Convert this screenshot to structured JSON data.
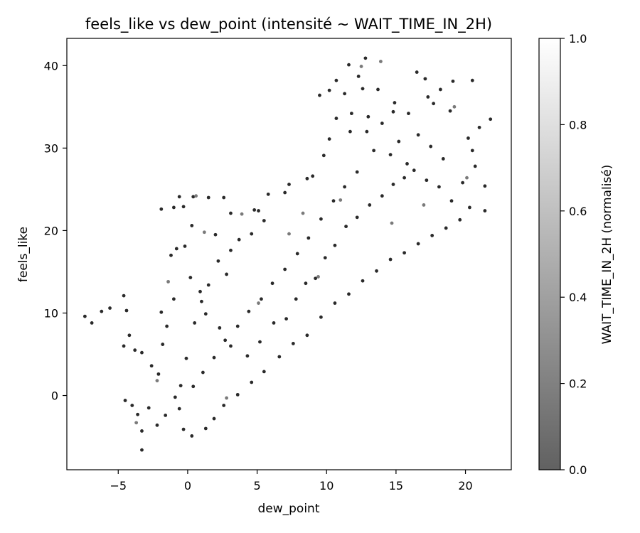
{
  "chart_data": {
    "type": "scatter",
    "title": "feels_like vs dew_point (intensité ~ WAIT_TIME_IN_2H)",
    "xlabel": "dew_point",
    "ylabel": "feels_like",
    "xlim": [
      -8.7,
      23.3
    ],
    "ylim": [
      -9.0,
      43.3
    ],
    "x_ticks": [
      -5,
      0,
      5,
      10,
      15,
      20
    ],
    "y_ticks": [
      0,
      10,
      20,
      30,
      40
    ],
    "grid": false,
    "colormap": "gray",
    "colorbar": {
      "label": "WAIT_TIME_IN_2H (normalisé)",
      "range": [
        0.0,
        1.0
      ],
      "ticks": [
        "0.0",
        "0.2",
        "0.4",
        "0.6",
        "0.8",
        "1.0"
      ],
      "color_low": "#616161",
      "color_high": "#ffffff"
    },
    "point_color_typical": "#2a2a2a",
    "series": [
      {
        "points": [
          [
            -7.4,
            9.6
          ],
          [
            -6.9,
            8.8
          ],
          [
            -6.2,
            10.2
          ],
          [
            -5.6,
            10.6
          ],
          [
            -4.6,
            12.1
          ],
          [
            -4.4,
            10.3
          ],
          [
            -4.2,
            7.3
          ],
          [
            -3.8,
            5.5
          ],
          [
            -3.3,
            5.2
          ],
          [
            -4.6,
            6.0
          ],
          [
            -4.5,
            -0.6
          ],
          [
            -4.0,
            -1.2
          ],
          [
            -3.6,
            -2.3
          ],
          [
            -3.3,
            -4.3
          ],
          [
            -3.3,
            -6.6
          ],
          [
            -2.8,
            -1.5
          ],
          [
            -2.6,
            3.6
          ],
          [
            -2.1,
            2.6
          ],
          [
            -1.8,
            6.2
          ],
          [
            -1.5,
            8.4
          ],
          [
            -1.9,
            10.1
          ],
          [
            -1.0,
            11.7
          ],
          [
            -1.2,
            17.0
          ],
          [
            -0.8,
            17.8
          ],
          [
            -1.9,
            22.6
          ],
          [
            -1.0,
            22.8
          ],
          [
            -0.3,
            22.9
          ],
          [
            -0.6,
            24.1
          ],
          [
            0.4,
            24.1
          ],
          [
            1.5,
            24.0
          ],
          [
            2.6,
            24.0
          ],
          [
            3.1,
            22.1
          ],
          [
            4.8,
            22.5
          ],
          [
            2.0,
            19.5
          ],
          [
            0.3,
            20.6
          ],
          [
            -0.2,
            18.1
          ],
          [
            0.2,
            14.3
          ],
          [
            1.0,
            11.4
          ],
          [
            0.5,
            8.8
          ],
          [
            -0.1,
            4.5
          ],
          [
            -0.5,
            1.2
          ],
          [
            -0.6,
            -1.6
          ],
          [
            -0.3,
            -4.1
          ],
          [
            0.3,
            -4.9
          ],
          [
            1.3,
            -4.0
          ],
          [
            1.9,
            -2.8
          ],
          [
            2.6,
            -1.2
          ],
          [
            3.6,
            0.1
          ],
          [
            4.6,
            1.6
          ],
          [
            5.5,
            2.9
          ],
          [
            6.6,
            4.7
          ],
          [
            7.6,
            6.3
          ],
          [
            8.6,
            7.3
          ],
          [
            9.6,
            9.5
          ],
          [
            10.6,
            11.2
          ],
          [
            11.6,
            12.3
          ],
          [
            12.6,
            13.9
          ],
          [
            13.6,
            15.1
          ],
          [
            14.6,
            16.5
          ],
          [
            15.6,
            17.3
          ],
          [
            16.6,
            18.4
          ],
          [
            17.6,
            19.4
          ],
          [
            18.6,
            20.3
          ],
          [
            19.6,
            21.3
          ],
          [
            20.3,
            22.8
          ],
          [
            21.4,
            25.4
          ],
          [
            21.4,
            22.4
          ],
          [
            20.7,
            27.8
          ],
          [
            20.5,
            29.7
          ],
          [
            20.2,
            31.2
          ],
          [
            21.0,
            32.5
          ],
          [
            21.8,
            33.5
          ],
          [
            20.5,
            38.2
          ],
          [
            19.1,
            38.1
          ],
          [
            18.9,
            34.5
          ],
          [
            18.2,
            37.1
          ],
          [
            17.7,
            35.4
          ],
          [
            17.3,
            36.2
          ],
          [
            16.5,
            39.2
          ],
          [
            17.1,
            38.4
          ],
          [
            15.9,
            34.2
          ],
          [
            14.8,
            34.4
          ],
          [
            14.0,
            33.0
          ],
          [
            13.7,
            37.1
          ],
          [
            14.9,
            35.5
          ],
          [
            15.2,
            30.8
          ],
          [
            13.0,
            33.8
          ],
          [
            12.6,
            37.2
          ],
          [
            12.9,
            32.0
          ],
          [
            12.3,
            38.7
          ],
          [
            12.8,
            40.9
          ],
          [
            11.6,
            40.1
          ],
          [
            10.7,
            38.2
          ],
          [
            11.3,
            36.6
          ],
          [
            9.5,
            36.4
          ],
          [
            10.2,
            37.0
          ],
          [
            11.8,
            34.2
          ],
          [
            10.7,
            33.6
          ],
          [
            11.7,
            32.0
          ],
          [
            10.2,
            31.1
          ],
          [
            9.8,
            29.1
          ],
          [
            9.0,
            26.6
          ],
          [
            8.6,
            26.3
          ],
          [
            7.3,
            25.6
          ],
          [
            7.0,
            24.6
          ],
          [
            5.8,
            24.4
          ],
          [
            5.5,
            21.2
          ],
          [
            5.1,
            22.4
          ],
          [
            4.6,
            19.6
          ],
          [
            3.7,
            18.9
          ],
          [
            3.1,
            17.6
          ],
          [
            2.2,
            16.3
          ],
          [
            2.8,
            14.7
          ],
          [
            1.5,
            13.4
          ],
          [
            0.9,
            12.6
          ],
          [
            1.3,
            9.9
          ],
          [
            2.3,
            8.2
          ],
          [
            3.1,
            6.0
          ],
          [
            4.3,
            4.8
          ],
          [
            5.2,
            6.5
          ],
          [
            6.2,
            8.8
          ],
          [
            7.1,
            9.3
          ],
          [
            7.8,
            11.7
          ],
          [
            8.5,
            13.6
          ],
          [
            9.2,
            14.2
          ],
          [
            9.9,
            16.7
          ],
          [
            10.6,
            18.2
          ],
          [
            11.4,
            20.5
          ],
          [
            12.2,
            21.6
          ],
          [
            13.1,
            23.1
          ],
          [
            14.0,
            24.2
          ],
          [
            14.8,
            25.6
          ],
          [
            15.6,
            26.4
          ],
          [
            16.3,
            27.3
          ],
          [
            17.2,
            26.1
          ],
          [
            18.1,
            25.3
          ],
          [
            19.0,
            23.6
          ],
          [
            19.8,
            25.8
          ],
          [
            18.4,
            28.7
          ],
          [
            17.5,
            30.2
          ],
          [
            16.6,
            31.6
          ],
          [
            15.8,
            28.1
          ],
          [
            14.6,
            29.2
          ],
          [
            13.4,
            29.7
          ],
          [
            12.2,
            27.1
          ],
          [
            11.3,
            25.3
          ],
          [
            10.5,
            23.6
          ],
          [
            9.6,
            21.4
          ],
          [
            8.7,
            19.1
          ],
          [
            7.9,
            17.2
          ],
          [
            7.0,
            15.3
          ],
          [
            6.1,
            13.6
          ],
          [
            5.3,
            11.7
          ],
          [
            4.4,
            10.2
          ],
          [
            3.6,
            8.4
          ],
          [
            2.7,
            6.7
          ],
          [
            1.9,
            4.6
          ],
          [
            1.1,
            2.8
          ],
          [
            0.4,
            1.1
          ],
          [
            -0.9,
            -0.2
          ],
          [
            -1.6,
            -2.4
          ],
          [
            -2.2,
            -3.6
          ]
        ],
        "light_points": [
          [
            -1.4,
            13.8
          ],
          [
            1.2,
            19.8
          ],
          [
            0.6,
            24.2
          ],
          [
            3.9,
            22.0
          ],
          [
            8.3,
            22.1
          ],
          [
            5.1,
            11.2
          ],
          [
            7.3,
            19.6
          ],
          [
            11.0,
            23.7
          ],
          [
            13.9,
            40.5
          ],
          [
            12.5,
            39.9
          ],
          [
            19.2,
            35.0
          ],
          [
            20.1,
            26.4
          ],
          [
            17.0,
            23.1
          ],
          [
            -3.7,
            -3.3
          ],
          [
            -2.2,
            1.8
          ],
          [
            2.8,
            -0.3
          ],
          [
            9.4,
            14.4
          ],
          [
            14.7,
            20.9
          ]
        ]
      }
    ]
  }
}
